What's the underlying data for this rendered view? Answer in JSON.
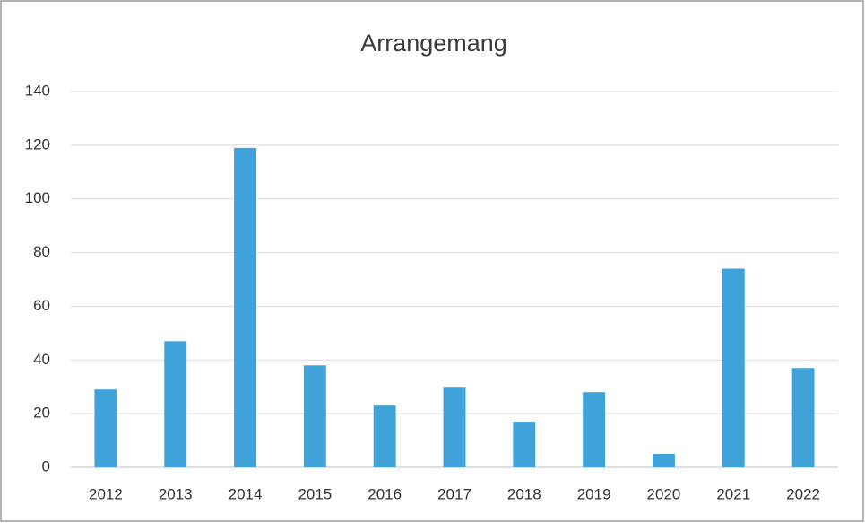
{
  "chart_data": {
    "type": "bar",
    "title": "Arrangemang",
    "categories": [
      "2012",
      "2013",
      "2014",
      "2015",
      "2016",
      "2017",
      "2018",
      "2019",
      "2020",
      "2021",
      "2022"
    ],
    "values": [
      29,
      47,
      119,
      38,
      23,
      30,
      17,
      28,
      5,
      74,
      37
    ],
    "color": "#3fa2d9",
    "ylim": [
      0,
      140
    ],
    "yticks": [
      0,
      20,
      40,
      60,
      80,
      100,
      120,
      140
    ],
    "grid": true
  }
}
